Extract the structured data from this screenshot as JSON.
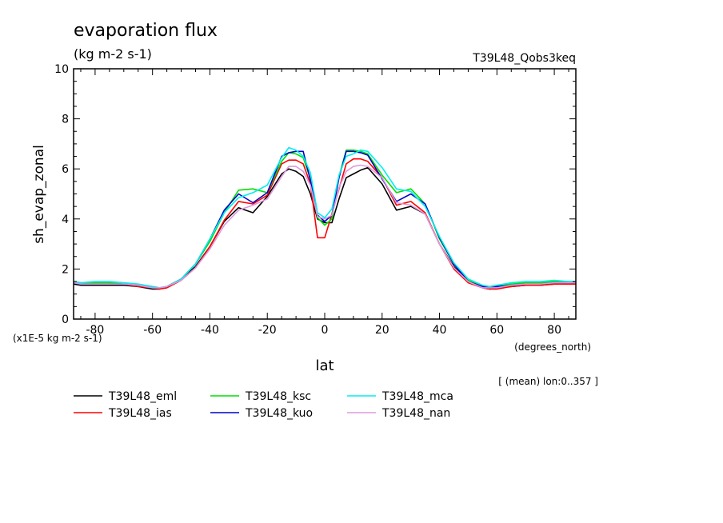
{
  "chart_data": {
    "type": "line",
    "title": "evaporation flux",
    "units": "(kg m-2 s-1)",
    "run_label": "T39L48_Qobs3keq",
    "ylabel": "sh_evap_zonal",
    "xlabel": "lat",
    "x_units": "(degrees_north)",
    "y_scale_note": "(x1E-5 kg m-2 s-1)",
    "averaging_note": "[ (mean) lon:0..357 ]",
    "xlim": [
      -87.5,
      87.5
    ],
    "ylim": [
      0,
      10
    ],
    "x_ticks": [
      -80,
      -60,
      -40,
      -20,
      0,
      20,
      40,
      60,
      80
    ],
    "x_tick_labels": [
      "-80",
      "-60",
      "-40",
      "-20",
      "0",
      "20",
      "40",
      "60",
      "80"
    ],
    "y_ticks": [
      0,
      2,
      4,
      6,
      8,
      10
    ],
    "y_tick_labels": [
      "0",
      "2",
      "4",
      "6",
      "8",
      "10"
    ],
    "legend_position": "bottom",
    "x": [
      -87.5,
      -85,
      -80,
      -75,
      -70,
      -65,
      -60,
      -57.5,
      -55,
      -50,
      -45,
      -40,
      -35,
      -30,
      -25,
      -20,
      -15,
      -12.5,
      -10,
      -7.5,
      -5,
      -2.5,
      0,
      2.5,
      5,
      7.5,
      10,
      12.5,
      15,
      20,
      25,
      30,
      35,
      40,
      45,
      50,
      55,
      57.5,
      60,
      65,
      70,
      75,
      80,
      85,
      87.5
    ],
    "series": [
      {
        "name": "T39L48_eml",
        "color": "#000000",
        "values": [
          1.4,
          1.35,
          1.35,
          1.35,
          1.35,
          1.3,
          1.2,
          1.2,
          1.3,
          1.6,
          2.1,
          2.9,
          3.9,
          4.45,
          4.25,
          4.9,
          5.8,
          6.0,
          5.9,
          5.7,
          5.0,
          4.0,
          3.85,
          3.85,
          4.8,
          5.65,
          5.8,
          5.95,
          6.05,
          5.4,
          4.35,
          4.5,
          4.2,
          3.0,
          2.1,
          1.5,
          1.25,
          1.2,
          1.25,
          1.3,
          1.35,
          1.35,
          1.4,
          1.4,
          1.4
        ]
      },
      {
        "name": "T39L48_ias",
        "color": "#ff0000",
        "values": [
          1.45,
          1.4,
          1.4,
          1.4,
          1.4,
          1.3,
          1.25,
          1.2,
          1.25,
          1.55,
          2.05,
          2.9,
          3.95,
          4.7,
          4.6,
          4.95,
          6.2,
          6.35,
          6.35,
          6.2,
          5.4,
          3.25,
          3.25,
          4.2,
          5.2,
          6.2,
          6.4,
          6.4,
          6.3,
          5.65,
          4.55,
          4.7,
          4.25,
          3.0,
          2.0,
          1.45,
          1.25,
          1.2,
          1.2,
          1.3,
          1.35,
          1.35,
          1.4,
          1.4,
          1.4
        ]
      },
      {
        "name": "T39L48_ksc",
        "color": "#00dd00",
        "values": [
          1.5,
          1.45,
          1.45,
          1.45,
          1.4,
          1.35,
          1.3,
          1.25,
          1.3,
          1.6,
          2.2,
          3.1,
          4.25,
          5.15,
          5.2,
          5.05,
          6.3,
          6.65,
          6.6,
          6.45,
          5.6,
          4.05,
          3.75,
          4.0,
          5.7,
          6.75,
          6.75,
          6.7,
          6.6,
          5.75,
          5.05,
          5.2,
          4.6,
          3.2,
          2.2,
          1.55,
          1.3,
          1.3,
          1.35,
          1.4,
          1.45,
          1.45,
          1.5,
          1.5,
          1.5
        ]
      },
      {
        "name": "T39L48_kuo",
        "color": "#0000cc",
        "values": [
          1.45,
          1.4,
          1.4,
          1.4,
          1.4,
          1.35,
          1.25,
          1.25,
          1.3,
          1.6,
          2.2,
          3.2,
          4.35,
          5.0,
          4.65,
          5.05,
          6.5,
          6.65,
          6.7,
          6.7,
          5.55,
          4.15,
          3.9,
          4.15,
          5.65,
          6.7,
          6.7,
          6.65,
          6.55,
          5.6,
          4.7,
          5.0,
          4.6,
          3.25,
          2.2,
          1.5,
          1.3,
          1.25,
          1.3,
          1.35,
          1.4,
          1.4,
          1.45,
          1.45,
          1.45
        ]
      },
      {
        "name": "T39L48_mca",
        "color": "#00eeee",
        "values": [
          1.5,
          1.45,
          1.5,
          1.5,
          1.45,
          1.4,
          1.3,
          1.25,
          1.3,
          1.6,
          2.2,
          3.2,
          4.25,
          4.85,
          5.05,
          5.35,
          6.45,
          6.85,
          6.75,
          6.5,
          5.85,
          4.25,
          4.05,
          4.4,
          5.75,
          6.5,
          6.6,
          6.75,
          6.7,
          6.05,
          5.2,
          5.1,
          4.5,
          3.3,
          2.25,
          1.6,
          1.35,
          1.3,
          1.35,
          1.45,
          1.5,
          1.5,
          1.55,
          1.5,
          1.5
        ]
      },
      {
        "name": "T39L48_nan",
        "color": "#dd99dd",
        "values": [
          1.45,
          1.4,
          1.4,
          1.4,
          1.4,
          1.35,
          1.25,
          1.25,
          1.3,
          1.55,
          2.05,
          2.8,
          3.75,
          4.35,
          4.55,
          4.8,
          5.7,
          6.1,
          6.1,
          5.9,
          5.35,
          4.1,
          4.0,
          4.15,
          5.25,
          5.9,
          6.1,
          6.15,
          6.1,
          5.65,
          4.65,
          4.55,
          4.2,
          3.0,
          2.05,
          1.5,
          1.25,
          1.25,
          1.25,
          1.35,
          1.4,
          1.4,
          1.45,
          1.45,
          1.45
        ]
      }
    ]
  }
}
